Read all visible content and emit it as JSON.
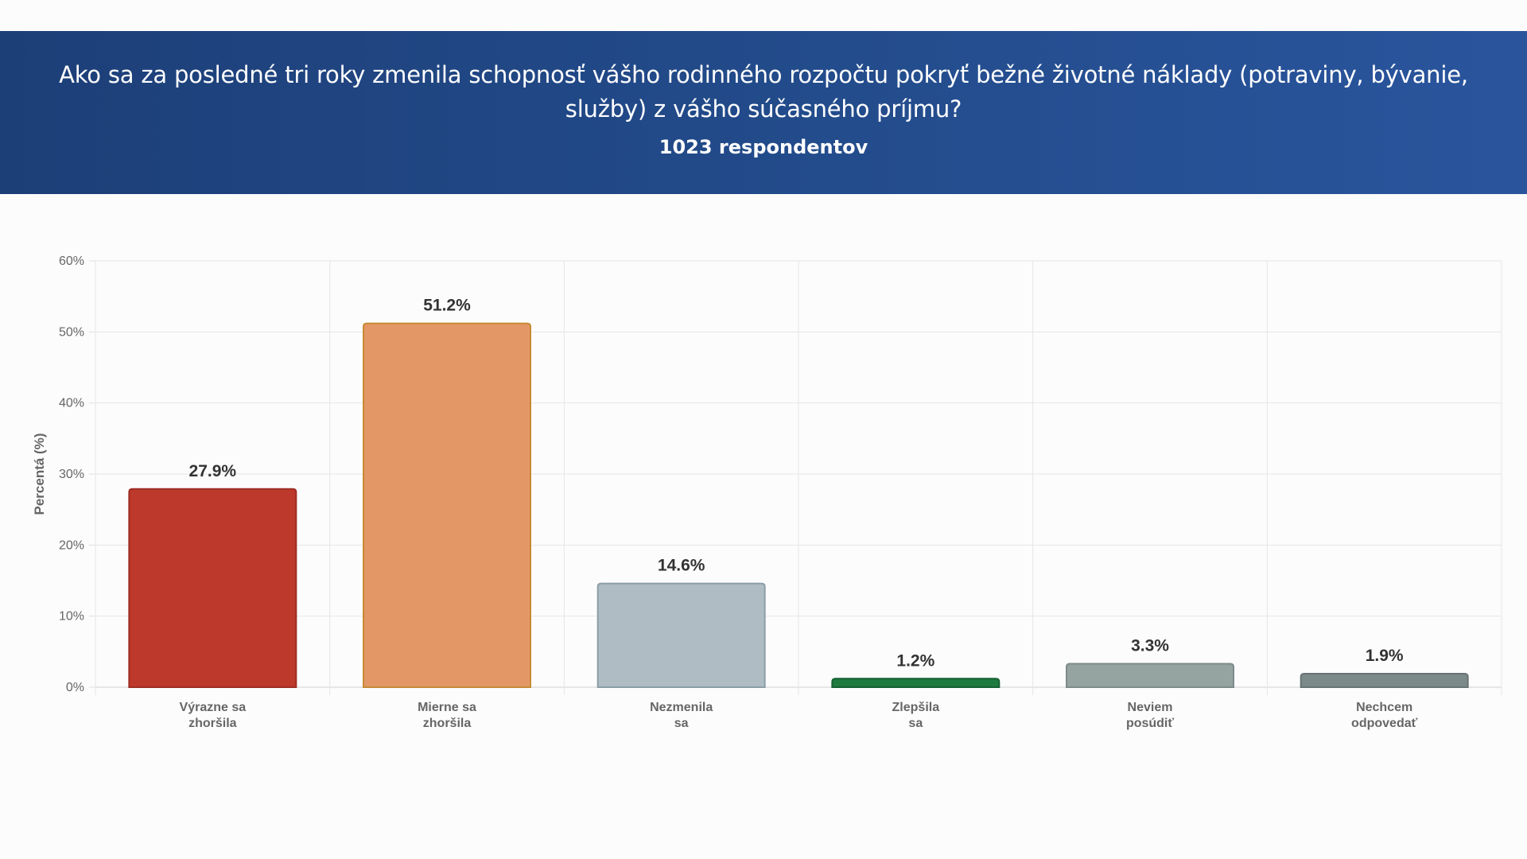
{
  "header": {
    "title": "Ako sa za posledné tri roky zmenila schopnosť vášho rodinného rozpočtu pokryť bežné životné náklady (potraviny, bývanie, služby) z vášho súčasného príjmu?",
    "subtitle": "1023 respondentov"
  },
  "chart_data": {
    "type": "bar",
    "title": "Ako sa za posledné tri roky zmenila schopnosť vášho rodinného rozpočtu pokryť bežné životné náklady (potraviny, bývanie, služby) z vášho súčasného príjmu?",
    "subtitle": "1023 respondentov",
    "ylabel": "Percentá (%)",
    "xlabel": "",
    "ylim": [
      0,
      60
    ],
    "yticks": [
      0,
      10,
      20,
      30,
      40,
      50,
      60
    ],
    "ytick_labels": [
      "0%",
      "10%",
      "20%",
      "30%",
      "40%",
      "50%",
      "60%"
    ],
    "grid": true,
    "legend": "none",
    "categories": [
      [
        "Výrazne sa",
        "zhoršila"
      ],
      [
        "Mierne sa",
        "zhoršila"
      ],
      [
        "Nezmenila",
        "sa"
      ],
      [
        "Zlepšila",
        "sa"
      ],
      [
        "Neviem",
        "posúdiť"
      ],
      [
        "Nechcem",
        "odpovedať"
      ]
    ],
    "values": [
      27.9,
      51.2,
      14.6,
      1.2,
      3.3,
      1.9
    ],
    "value_labels": [
      "27.9%",
      "51.2%",
      "14.6%",
      "1.2%",
      "3.3%",
      "1.9%"
    ],
    "colors": [
      "#bd392c",
      "#e49766",
      "#afbcc4",
      "#1f7a40",
      "#95a4a1",
      "#7d8a8a"
    ],
    "border_colors": [
      "#9e2e23",
      "#c58a35",
      "#8b9ea8",
      "#166132",
      "#7d8b89",
      "#687474"
    ]
  }
}
